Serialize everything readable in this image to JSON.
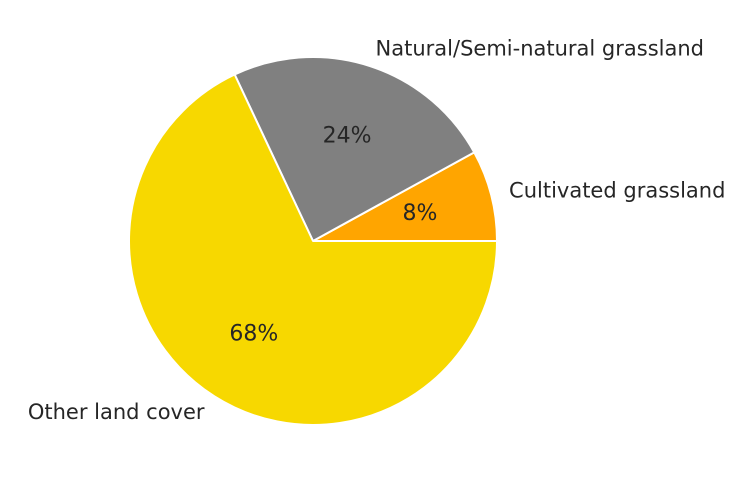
{
  "chart_data": {
    "type": "pie",
    "title": "",
    "start_angle_deg": 0,
    "direction": "counterclockwise",
    "slices": [
      {
        "label": "Cultivated grassland",
        "value": 8,
        "pct_label": "8%",
        "color": "#FFA500"
      },
      {
        "label": "Natural/Semi-natural grassland",
        "value": 24,
        "pct_label": "24%",
        "color": "#808080"
      },
      {
        "label": "Other land cover",
        "value": 68,
        "pct_label": "68%",
        "color": "#F7D800"
      }
    ],
    "edge_color": "#FFFFFF"
  }
}
